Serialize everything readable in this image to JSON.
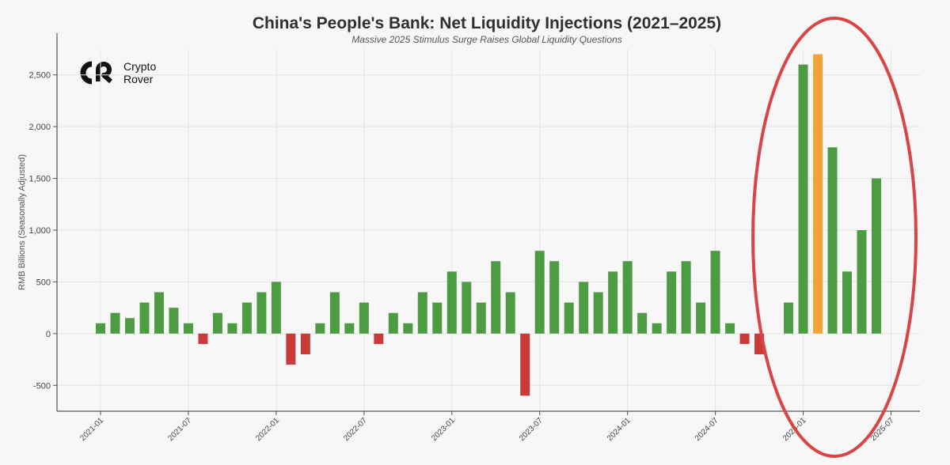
{
  "colors": {
    "positive": "#4d9c43",
    "negative": "#c83b3a",
    "highlight": "#f2a33a",
    "annotation": "#d94545",
    "grid": "#e4e4e4",
    "axis": "#555555"
  },
  "brand": {
    "name_line1": "Crypto",
    "name_line2": "Rover",
    "icon": "crypto-rover-logo"
  },
  "chart_data": {
    "type": "bar",
    "title": "China's People's Bank: Net Liquidity Injections (2021–2025)",
    "subtitle": "Massive 2025 Stimulus Surge Raises Global Liquidity Questions",
    "xlabel": "",
    "ylabel": "RMB Billions (Seasonally Adjusted)",
    "ylim": [
      -750,
      2750
    ],
    "y_ticks": [
      -500,
      0,
      500,
      1000,
      1500,
      2000,
      2500
    ],
    "y_tick_labels": [
      "-500",
      "0",
      "500",
      "1,000",
      "1,500",
      "2,000",
      "2,500"
    ],
    "x_ticks": [
      "2021-01",
      "2021-07",
      "2022-01",
      "2022-07",
      "2023-01",
      "2023-07",
      "2024-01",
      "2024-07",
      "2025-01",
      "2025-07"
    ],
    "grid": true,
    "highlighted_category": "2025-02",
    "annotation": "red ellipse around 2024-11 to 2025-05",
    "categories": [
      "2021-01",
      "2021-02",
      "2021-03",
      "2021-04",
      "2021-05",
      "2021-06",
      "2021-07",
      "2021-08",
      "2021-09",
      "2021-10",
      "2021-11",
      "2021-12",
      "2022-01",
      "2022-02",
      "2022-03",
      "2022-04",
      "2022-05",
      "2022-06",
      "2022-07",
      "2022-08",
      "2022-09",
      "2022-10",
      "2022-11",
      "2022-12",
      "2023-01",
      "2023-02",
      "2023-03",
      "2023-04",
      "2023-05",
      "2023-06",
      "2023-07",
      "2023-08",
      "2023-09",
      "2023-10",
      "2023-11",
      "2023-12",
      "2024-01",
      "2024-02",
      "2024-03",
      "2024-04",
      "2024-05",
      "2024-06",
      "2024-07",
      "2024-08",
      "2024-09",
      "2024-10",
      "2024-11",
      "2024-12",
      "2025-01",
      "2025-02",
      "2025-03",
      "2025-04",
      "2025-05",
      "2025-06"
    ],
    "values": [
      100,
      200,
      150,
      300,
      400,
      250,
      100,
      -100,
      200,
      100,
      300,
      400,
      500,
      -300,
      -200,
      100,
      400,
      100,
      300,
      -100,
      200,
      100,
      400,
      300,
      600,
      500,
      300,
      700,
      400,
      -600,
      800,
      700,
      300,
      500,
      400,
      600,
      700,
      200,
      100,
      600,
      700,
      300,
      800,
      100,
      -100,
      -200,
      0,
      300,
      2600,
      2700,
      1800,
      600,
      1000,
      1500
    ]
  }
}
